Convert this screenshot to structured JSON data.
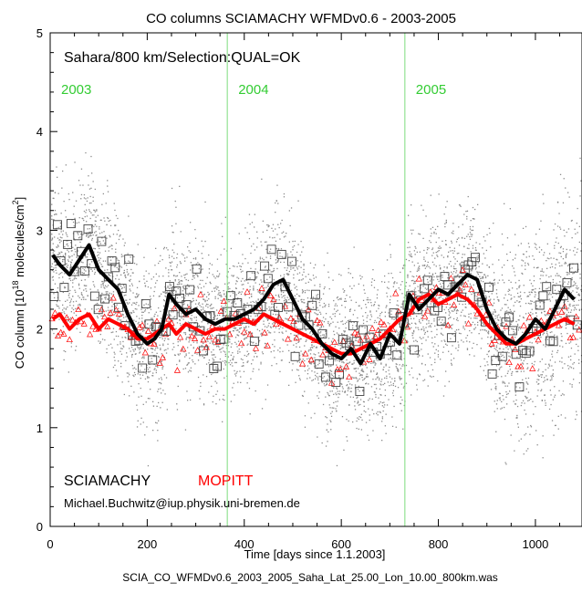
{
  "chart_data": {
    "type": "scatter",
    "title": "CO columns SCIAMACHY WFMDv0.6 - 2003-2005",
    "xlabel": "Time [days since 1.1.2003]",
    "ylabel_main": "CO column [10",
    "ylabel_exp": "18",
    "ylabel_rest": " molecules/cm",
    "ylabel_sq": "2",
    "ylabel_end": "]",
    "xlim": [
      0,
      1096
    ],
    "ylim": [
      0,
      5
    ],
    "x_ticks": [
      0,
      200,
      400,
      600,
      800,
      1000
    ],
    "y_ticks": [
      0,
      1,
      2,
      3,
      4,
      5
    ],
    "grid": false,
    "annotation": "Sahara/800 km/Selection:QUAL=OK",
    "year_markers": [
      {
        "label": "2003",
        "x": 0
      },
      {
        "label": "2004",
        "x": 365
      },
      {
        "label": "2005",
        "x": 731
      }
    ],
    "legend": [
      {
        "label": "SCIAMACHY",
        "color": "#000000"
      },
      {
        "label": "MOPITT",
        "color": "#ff0000"
      }
    ],
    "credit": "Michael.Buchwitz@iup.physik.uni-bremen.de",
    "footer": "SCIA_CO_WFMDv0.6_2003_2005_Saha_Lat_25.00_Lon_10.00_800km.was",
    "colors": {
      "sciamachy_single": "#8c8c8c",
      "sciamachy_daily": "#444444",
      "sciamachy_mean": "#000000",
      "mopitt": "#ff0000",
      "year_line": "#7ddc7d",
      "year_label": "#33cc33"
    },
    "series": [
      {
        "name": "SCIAMACHY",
        "role": "smoothed_mean",
        "x": [
          5,
          20,
          40,
          60,
          80,
          100,
          120,
          140,
          160,
          180,
          200,
          215,
          230,
          245,
          260,
          280,
          300,
          320,
          340,
          360,
          380,
          400,
          420,
          440,
          460,
          480,
          500,
          520,
          540,
          560,
          580,
          600,
          620,
          640,
          660,
          680,
          700,
          720,
          740,
          760,
          780,
          800,
          820,
          840,
          860,
          880,
          900,
          920,
          940,
          960,
          980,
          1000,
          1020,
          1040,
          1060,
          1080
        ],
        "y": [
          2.75,
          2.65,
          2.55,
          2.7,
          2.85,
          2.6,
          2.5,
          2.4,
          2.15,
          1.95,
          1.85,
          1.9,
          2.0,
          2.35,
          2.25,
          2.15,
          2.2,
          2.1,
          2.05,
          2.1,
          2.1,
          2.15,
          2.2,
          2.3,
          2.45,
          2.5,
          2.3,
          2.1,
          2.0,
          1.85,
          1.75,
          1.7,
          1.8,
          1.65,
          1.85,
          1.7,
          1.95,
          1.85,
          2.35,
          2.2,
          2.3,
          2.4,
          2.35,
          2.45,
          2.55,
          2.5,
          2.2,
          2.0,
          1.9,
          1.85,
          1.95,
          2.1,
          2.0,
          2.2,
          2.4,
          2.3
        ]
      },
      {
        "name": "MOPITT",
        "role": "smoothed_mean",
        "x": [
          5,
          20,
          40,
          60,
          80,
          100,
          120,
          140,
          160,
          180,
          200,
          215,
          230,
          245,
          260,
          280,
          300,
          320,
          340,
          360,
          380,
          400,
          420,
          440,
          460,
          480,
          500,
          520,
          540,
          560,
          580,
          600,
          620,
          640,
          660,
          680,
          700,
          720,
          740,
          760,
          780,
          800,
          820,
          840,
          860,
          880,
          900,
          920,
          940,
          960,
          980,
          1000,
          1020,
          1040,
          1060,
          1080
        ],
        "y": [
          2.1,
          2.15,
          2.0,
          2.1,
          2.15,
          2.0,
          2.1,
          2.05,
          2.0,
          1.9,
          1.9,
          1.95,
          2.0,
          2.05,
          1.95,
          2.05,
          2.0,
          1.95,
          2.0,
          2.0,
          2.05,
          2.1,
          2.05,
          2.15,
          2.1,
          2.05,
          2.0,
          1.95,
          1.9,
          1.85,
          1.8,
          1.75,
          1.75,
          1.8,
          1.85,
          1.9,
          2.0,
          2.1,
          2.15,
          2.3,
          2.35,
          2.25,
          2.3,
          2.35,
          2.3,
          2.2,
          2.05,
          1.95,
          1.85,
          1.85,
          1.9,
          1.95,
          2.0,
          2.05,
          2.1,
          2.05
        ]
      }
    ]
  }
}
